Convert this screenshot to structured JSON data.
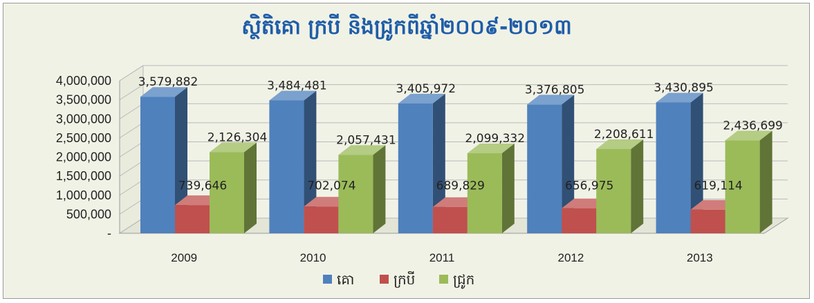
{
  "chart_data": {
    "type": "bar",
    "title": "ស្ថិតិគោ ក្របី និងជ្រូកពីឆ្នាំ២០០៩-២០១៣",
    "categories": [
      "2009",
      "2010",
      "2011",
      "2012",
      "2013"
    ],
    "series": [
      {
        "name": "គោ",
        "values": [
          3579882,
          3484481,
          3405972,
          3376805,
          3430895
        ],
        "color": "#4f81bd",
        "labels": [
          "3,579,882",
          "3,484,481",
          "3,405,972",
          "3,376,805",
          "3,430,895"
        ]
      },
      {
        "name": "ក្របី",
        "values": [
          739646,
          702074,
          689829,
          656975,
          619114
        ],
        "color": "#c0504d",
        "labels": [
          "739,646",
          "702,074",
          "689,829",
          "656,975",
          "619,114"
        ]
      },
      {
        "name": "ជ្រូក",
        "values": [
          2126304,
          2057431,
          2099332,
          2208611,
          2436699
        ],
        "color": "#9bbb59",
        "labels": [
          "2,126,304",
          "2,057,431",
          "2,099,332",
          "2,208,611",
          "2,436,699"
        ]
      }
    ],
    "y_ticks": [
      "-",
      "500,000",
      "1,000,000",
      "1,500,000",
      "2,000,000",
      "2,500,000",
      "3,000,000",
      "3,500,000",
      "4,000,000"
    ],
    "ylim": [
      0,
      4000000
    ],
    "grid": true,
    "legend_position": "bottom"
  }
}
